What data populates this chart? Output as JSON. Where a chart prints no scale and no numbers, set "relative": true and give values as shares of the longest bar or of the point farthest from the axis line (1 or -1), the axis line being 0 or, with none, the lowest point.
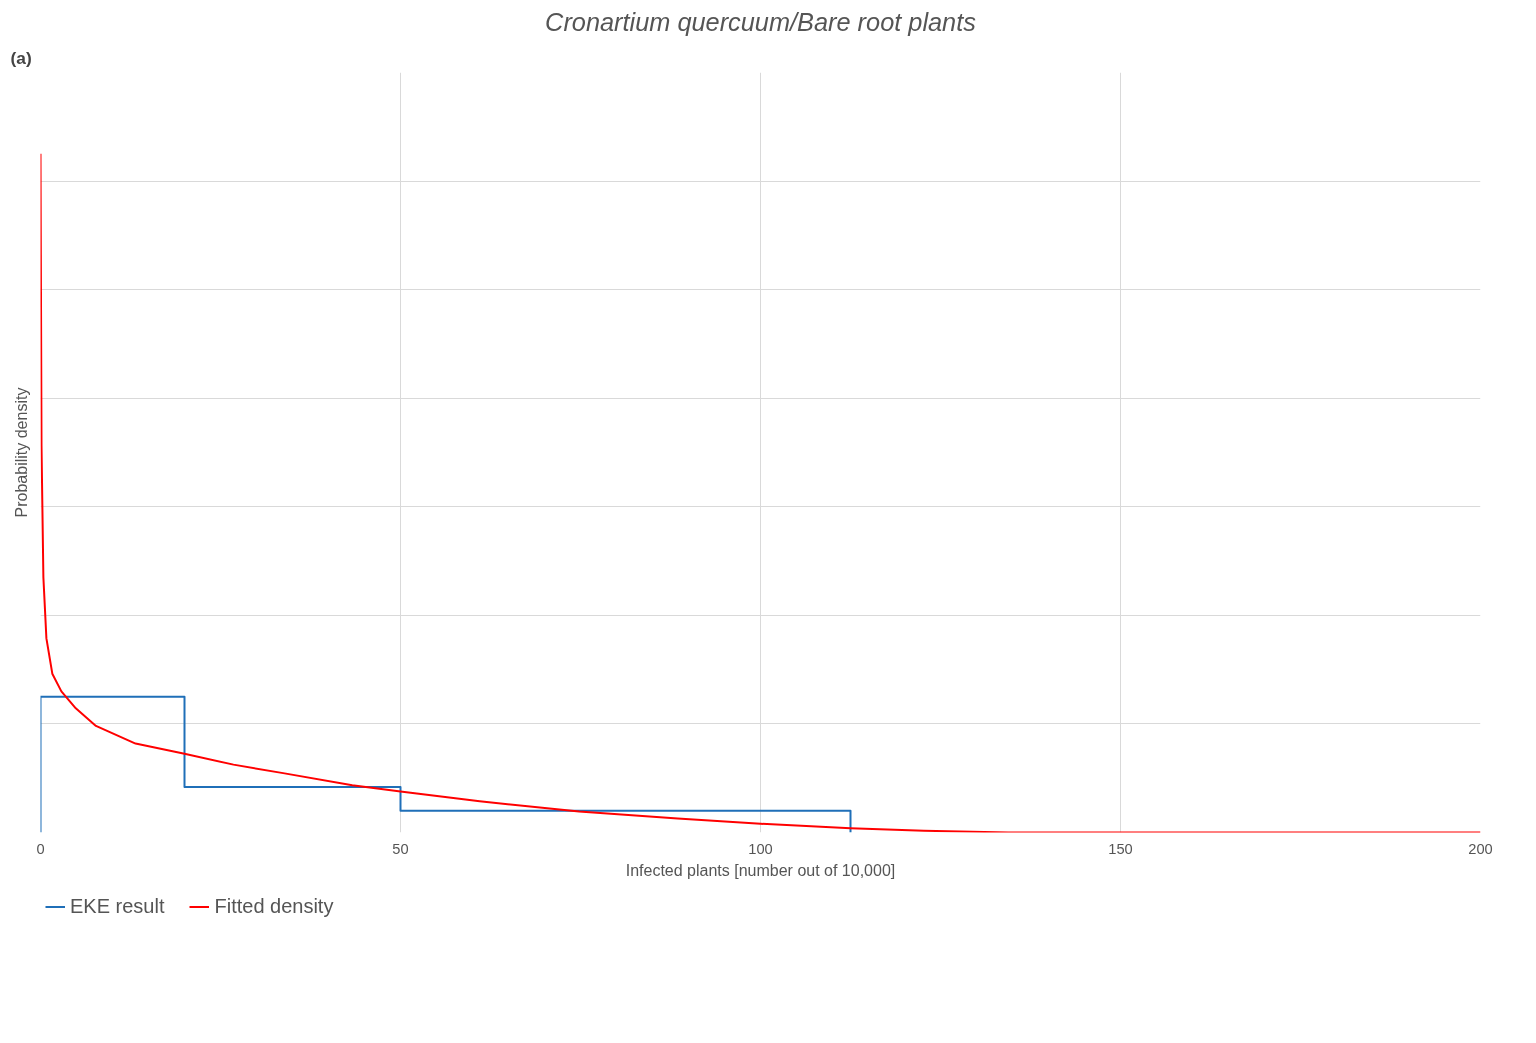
{
  "chart_data": {
    "type": "line",
    "title": "Cronartium quercuum/Bare root plants",
    "xlabel": "Infected plants [number out of 10,000]",
    "ylabel": "Probability density",
    "annotations": [
      "(a)"
    ],
    "relative": true,
    "xlim": [
      0,
      200
    ],
    "xticks": [
      0,
      50,
      100,
      150,
      200
    ],
    "grid": true,
    "legend": "bottom left",
    "marker": "none",
    "line_style": "solid",
    "series": [
      {
        "name": "EKE result",
        "color": "#1f6fb8",
        "x": [
          0,
          0,
          20,
          20,
          50,
          50,
          112.5,
          112.5
        ],
        "values": [
          0,
          0.2,
          0.2,
          0.067,
          0.067,
          0.032,
          0.032,
          0
        ]
      },
      {
        "name": "Fitted density",
        "color": "#ff0000",
        "x": [
          0,
          0.14,
          0.4,
          0.82,
          1.64,
          2.9,
          4.9,
          7.7,
          13.2,
          20,
          26.8,
          33.7,
          43.3,
          50,
          61,
          74.8,
          88.5,
          100,
          112.5,
          122.7,
          134.4,
          200
        ],
        "values": [
          1,
          0.57,
          0.376,
          0.286,
          0.234,
          0.208,
          0.183,
          0.157,
          0.131,
          0.116,
          0.1,
          0.0875,
          0.0695,
          0.0605,
          0.046,
          0.031,
          0.0206,
          0.0129,
          0.0064,
          0.0026,
          0,
          0
        ]
      }
    ]
  }
}
